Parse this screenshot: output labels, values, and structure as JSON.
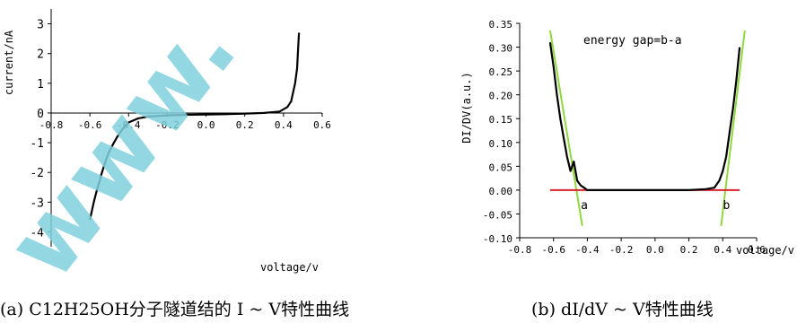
{
  "captions": {
    "a": "(a) C12H25OH分子隧道结的 I ~ V特性曲线",
    "b": "(b) dI/dV ~ V特性曲线"
  },
  "watermark": {
    "text": "www.",
    "color": "#7fd0dc"
  },
  "chart_data": [
    {
      "type": "line",
      "xlabel": "voltage/v",
      "ylabel": "current/nA",
      "xlim": [
        -0.8,
        0.6
      ],
      "ylim": [
        -4.5,
        3.5
      ],
      "x_ticks": [
        "-0.8",
        "-0.6",
        "-0.4",
        "-0.2",
        "0.0",
        "0.2",
        "0.4",
        "0.6"
      ],
      "y_ticks": [
        "3",
        "2",
        "1",
        "0",
        "-1",
        "-2",
        "-3",
        "-4"
      ],
      "series": [
        {
          "color": "#000000",
          "x": [
            -0.6,
            -0.59,
            -0.58,
            -0.57,
            -0.56,
            -0.55,
            -0.54,
            -0.53,
            -0.52,
            -0.51,
            -0.5,
            -0.48,
            -0.46,
            -0.44,
            -0.42,
            -0.4,
            -0.35,
            -0.3,
            -0.25,
            -0.2,
            -0.1,
            0.0,
            0.1,
            0.2,
            0.3,
            0.38,
            0.42,
            0.44,
            0.45,
            0.46,
            0.47,
            0.48
          ],
          "y": [
            -3.6,
            -3.3,
            -3.0,
            -2.75,
            -2.5,
            -2.3,
            -2.05,
            -1.85,
            -1.65,
            -1.45,
            -1.3,
            -1.05,
            -0.82,
            -0.62,
            -0.45,
            -0.32,
            -0.18,
            -0.12,
            -0.1,
            -0.08,
            -0.06,
            -0.05,
            -0.04,
            -0.02,
            0.0,
            0.05,
            0.2,
            0.4,
            0.7,
            1.0,
            1.5,
            2.7
          ]
        }
      ]
    },
    {
      "type": "line",
      "xlabel": "voltage/v",
      "ylabel": "DI/DV(a.u.)",
      "annotation": "energy gap=b-a",
      "xlim": [
        -0.8,
        0.6
      ],
      "ylim": [
        -0.1,
        0.35
      ],
      "x_ticks": [
        "-0.8",
        "-0.6",
        "-0.4",
        "-0.2",
        "0.0",
        "0.2",
        "0.4",
        "0.6"
      ],
      "y_ticks": [
        "0.35",
        "0.30",
        "0.25",
        "0.20",
        "0.15",
        "0.10",
        "0.05",
        "0.00",
        "-0.05",
        "-0.10"
      ],
      "series": [
        {
          "color": "#000000",
          "x": [
            -0.62,
            -0.6,
            -0.58,
            -0.56,
            -0.54,
            -0.52,
            -0.5,
            -0.48,
            -0.46,
            -0.44,
            -0.42,
            -0.4,
            -0.35,
            -0.3,
            -0.2,
            -0.1,
            0.0,
            0.1,
            0.2,
            0.3,
            0.35,
            0.38,
            0.4,
            0.42,
            0.44,
            0.46,
            0.48,
            0.5
          ],
          "y": [
            0.31,
            0.26,
            0.2,
            0.15,
            0.11,
            0.07,
            0.04,
            0.06,
            0.02,
            0.01,
            0.005,
            0.0,
            0.0,
            0.0,
            0.0,
            0.0,
            0.0,
            0.0,
            0.0,
            0.002,
            0.005,
            0.02,
            0.04,
            0.07,
            0.12,
            0.17,
            0.23,
            0.3
          ]
        }
      ],
      "fit_lines": [
        {
          "color": "#8fd83c",
          "x": [
            -0.62,
            -0.43
          ],
          "y": [
            0.335,
            -0.075
          ]
        },
        {
          "color": "#8fd83c",
          "x": [
            0.39,
            0.53
          ],
          "y": [
            -0.075,
            0.335
          ]
        },
        {
          "color": "#d8202a",
          "x": [
            -0.62,
            0.5
          ],
          "y": [
            0.0,
            0.0
          ]
        }
      ],
      "markers": [
        {
          "label": "a",
          "x": -0.46,
          "y": -0.04
        },
        {
          "label": "b",
          "x": 0.38,
          "y": -0.04
        }
      ]
    }
  ]
}
